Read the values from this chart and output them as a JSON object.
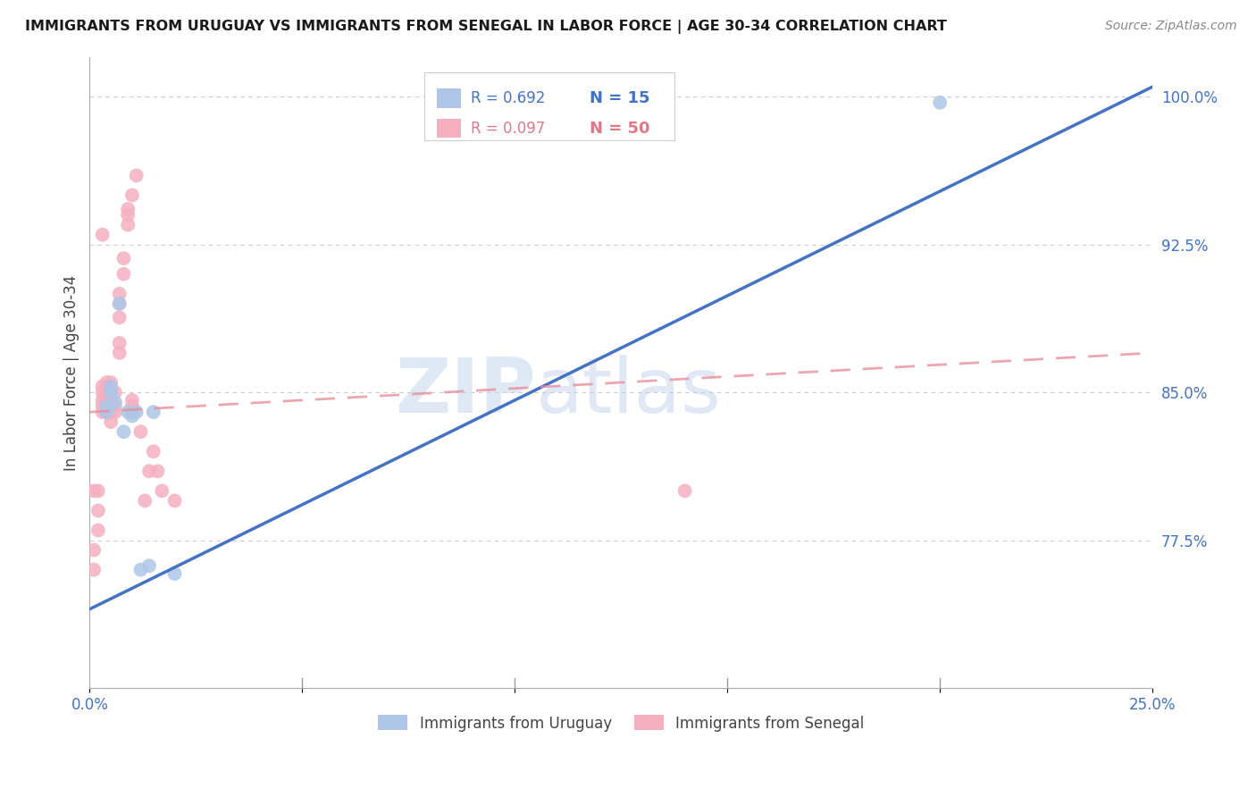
{
  "title": "IMMIGRANTS FROM URUGUAY VS IMMIGRANTS FROM SENEGAL IN LABOR FORCE | AGE 30-34 CORRELATION CHART",
  "source": "Source: ZipAtlas.com",
  "ylabel": "In Labor Force | Age 30-34",
  "xlim": [
    0.0,
    0.25
  ],
  "ylim": [
    0.7,
    1.02
  ],
  "yticks_right": [
    0.775,
    0.85,
    0.925,
    1.0
  ],
  "yticklabels_right": [
    "77.5%",
    "85.0%",
    "92.5%",
    "100.0%"
  ],
  "xtick_vals": [
    0.0,
    0.05,
    0.1,
    0.15,
    0.2,
    0.25
  ],
  "xticklabels": [
    "0.0%",
    "",
    "",
    "",
    "",
    "25.0%"
  ],
  "uruguay_color": "#adc6e8",
  "senegal_color": "#f5b0c0",
  "uruguay_line_color": "#4472c4",
  "senegal_line_color": "#e8909a",
  "background_color": "#ffffff",
  "grid_color": "#cccccc",
  "watermark_color": "#d5e5f5",
  "uruguay_x": [
    0.004,
    0.004,
    0.005,
    0.005,
    0.006,
    0.007,
    0.008,
    0.009,
    0.01,
    0.011,
    0.012,
    0.014,
    0.015,
    0.02,
    0.2
  ],
  "uruguay_y": [
    0.84,
    0.843,
    0.85,
    0.853,
    0.845,
    0.895,
    0.83,
    0.84,
    0.838,
    0.84,
    0.76,
    0.762,
    0.84,
    0.758,
    0.997
  ],
  "senegal_x": [
    0.001,
    0.001,
    0.001,
    0.002,
    0.002,
    0.002,
    0.003,
    0.003,
    0.003,
    0.003,
    0.003,
    0.004,
    0.004,
    0.004,
    0.004,
    0.004,
    0.004,
    0.005,
    0.005,
    0.005,
    0.005,
    0.005,
    0.005,
    0.006,
    0.006,
    0.006,
    0.007,
    0.007,
    0.007,
    0.007,
    0.007,
    0.008,
    0.008,
    0.009,
    0.009,
    0.009,
    0.01,
    0.01,
    0.01,
    0.01,
    0.011,
    0.012,
    0.013,
    0.014,
    0.015,
    0.016,
    0.017,
    0.02,
    0.14,
    0.003
  ],
  "senegal_y": [
    0.76,
    0.77,
    0.8,
    0.78,
    0.79,
    0.8,
    0.84,
    0.843,
    0.846,
    0.85,
    0.853,
    0.84,
    0.843,
    0.845,
    0.848,
    0.85,
    0.855,
    0.835,
    0.84,
    0.843,
    0.846,
    0.85,
    0.855,
    0.84,
    0.843,
    0.85,
    0.87,
    0.875,
    0.888,
    0.895,
    0.9,
    0.91,
    0.918,
    0.935,
    0.94,
    0.943,
    0.84,
    0.843,
    0.846,
    0.95,
    0.96,
    0.83,
    0.795,
    0.81,
    0.82,
    0.81,
    0.8,
    0.795,
    0.8,
    0.93
  ],
  "uru_line_x0": 0.0,
  "uru_line_y0": 0.74,
  "uru_line_x1": 0.25,
  "uru_line_y1": 1.005,
  "sen_line_x0": 0.0,
  "sen_line_y0": 0.84,
  "sen_line_x1": 0.25,
  "sen_line_y1": 0.87,
  "legend_r1": "R = 0.692",
  "legend_n1": "N = 15",
  "legend_r2": "R = 0.097",
  "legend_n2": "N = 50",
  "label_uruguay": "Immigrants from Uruguay",
  "label_senegal": "Immigrants from Senegal"
}
